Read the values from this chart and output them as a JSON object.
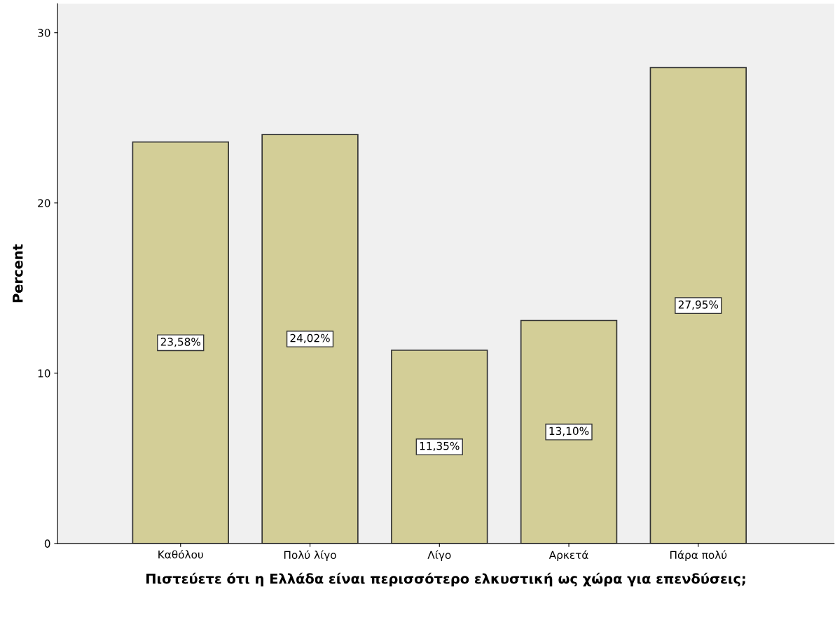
{
  "chart_data": {
    "type": "bar",
    "categories": [
      "Καθόλου",
      "Πολύ λίγο",
      "Λίγο",
      "Αρκετά",
      "Πάρα πολύ"
    ],
    "values": [
      23.58,
      24.02,
      11.35,
      13.1,
      27.95
    ],
    "value_labels": [
      "23,58%",
      "24,02%",
      "11,35%",
      "13,10%",
      "27,95%"
    ],
    "color": "#d3ce97",
    "xlabel": "Πιστεύετε ότι η Ελλάδα είναι περισσότερο ελκυστική ως χώρα για επενδύσεις;",
    "ylabel": "Percent",
    "ylim": [
      0,
      31.7
    ],
    "yticks": [
      0,
      10,
      20,
      30
    ],
    "grid": false,
    "legend": false
  }
}
